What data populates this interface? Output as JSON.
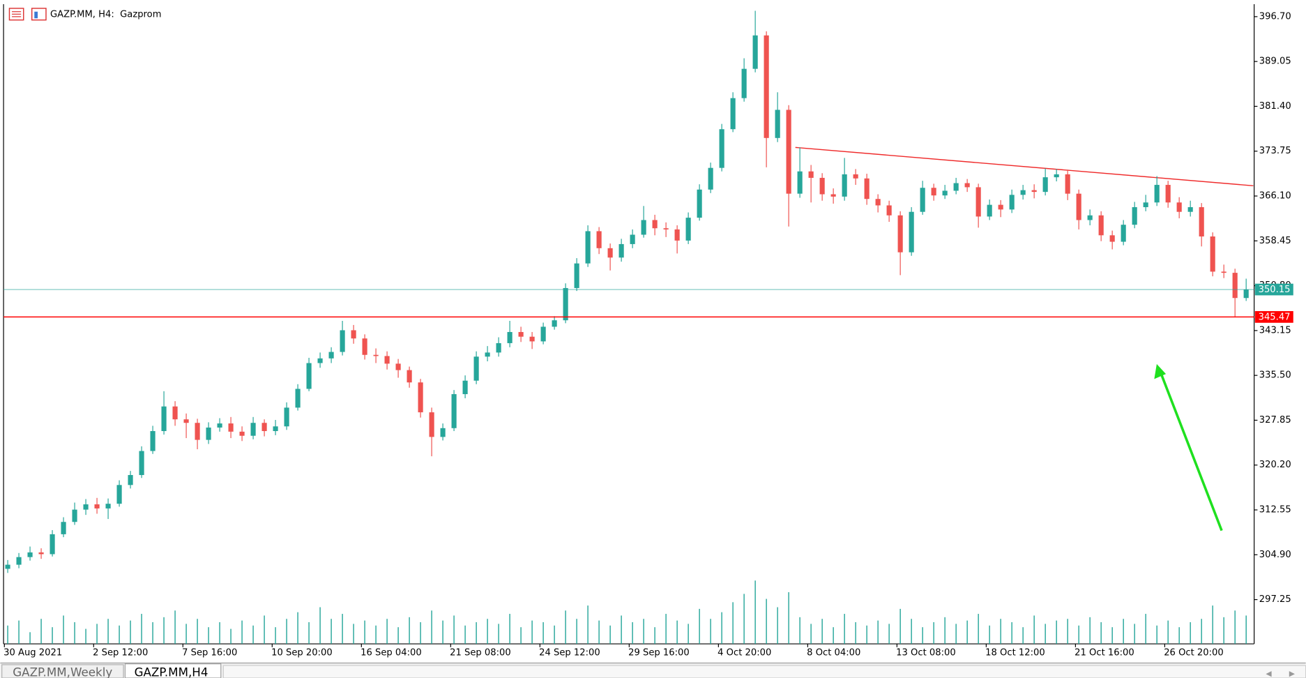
{
  "tabs": [
    "GAZP.MM,Weekly",
    "GAZP.MM,H4"
  ],
  "chart_data": {
    "type": "candlestick",
    "title": "GAZP.MM, H4:  Gazprom",
    "up_color": "#26a69a",
    "down_color": "#ef5350",
    "volume_color": "#26a69a",
    "ylim": [
      289.7,
      398.83
    ],
    "yticks": [
      {
        "value": 396.7,
        "label": "396.70"
      },
      {
        "value": 389.05,
        "label": "389.05"
      },
      {
        "value": 381.4,
        "label": "381.40"
      },
      {
        "value": 373.75,
        "label": "373.75"
      },
      {
        "value": 366.1,
        "label": "366.10"
      },
      {
        "value": 358.45,
        "label": "358.45"
      },
      {
        "value": 350.8,
        "label": "350.80"
      },
      {
        "value": 343.15,
        "label": "343.15"
      },
      {
        "value": 335.5,
        "label": "335.50"
      },
      {
        "value": 327.85,
        "label": "327.85"
      },
      {
        "value": 320.2,
        "label": "320.20"
      },
      {
        "value": 312.55,
        "label": "312.55"
      },
      {
        "value": 304.9,
        "label": "304.90"
      },
      {
        "value": 297.25,
        "label": "297.25"
      }
    ],
    "levels": [
      {
        "value": 350.15,
        "color": "#26a69a"
      },
      {
        "value": 345.47,
        "color": "#ff0000"
      }
    ],
    "categories": [
      "30 Aug 2021",
      null,
      null,
      null,
      null,
      null,
      null,
      null,
      "2 Sep 12:00",
      null,
      null,
      null,
      null,
      null,
      null,
      null,
      "7 Sep 16:00",
      null,
      null,
      null,
      null,
      null,
      null,
      null,
      "10 Sep 20:00",
      null,
      null,
      null,
      null,
      null,
      null,
      null,
      "16 Sep 04:00",
      null,
      null,
      null,
      null,
      null,
      null,
      null,
      "21 Sep 08:00",
      null,
      null,
      null,
      null,
      null,
      null,
      null,
      "24 Sep 12:00",
      null,
      null,
      null,
      null,
      null,
      null,
      null,
      "29 Sep 16:00",
      null,
      null,
      null,
      null,
      null,
      null,
      null,
      "4 Oct 20:00",
      null,
      null,
      null,
      null,
      null,
      null,
      null,
      "8 Oct 04:00",
      null,
      null,
      null,
      null,
      null,
      null,
      null,
      "13 Oct 08:00",
      null,
      null,
      null,
      null,
      null,
      null,
      null,
      "18 Oct 12:00",
      null,
      null,
      null,
      null,
      null,
      null,
      null,
      "21 Oct 16:00",
      null,
      null,
      null,
      null,
      null,
      null,
      null,
      "26 Oct 20:00",
      null,
      null,
      null,
      null,
      null,
      null,
      null
    ],
    "candles": [
      [
        302.5,
        304.0,
        301.8,
        303.2
      ],
      [
        303.2,
        305.2,
        302.6,
        304.5
      ],
      [
        304.5,
        306.3,
        303.9,
        305.3
      ],
      [
        305.3,
        306.0,
        304.2,
        305.0
      ],
      [
        305.0,
        309.1,
        304.6,
        308.4
      ],
      [
        308.4,
        311.3,
        307.9,
        310.5
      ],
      [
        310.5,
        313.8,
        310.0,
        312.6
      ],
      [
        312.6,
        314.4,
        311.7,
        313.5
      ],
      [
        313.5,
        314.6,
        311.9,
        312.8
      ],
      [
        312.8,
        314.5,
        311.0,
        313.6
      ],
      [
        313.6,
        317.6,
        313.1,
        316.8
      ],
      [
        316.8,
        319.2,
        316.2,
        318.5
      ],
      [
        318.5,
        323.4,
        318.0,
        322.6
      ],
      [
        322.6,
        326.9,
        322.1,
        326.0
      ],
      [
        326.0,
        332.8,
        325.4,
        330.2
      ],
      [
        330.2,
        331.1,
        326.9,
        328.0
      ],
      [
        328.0,
        329.0,
        324.8,
        327.4
      ],
      [
        327.4,
        328.1,
        322.9,
        324.5
      ],
      [
        324.5,
        327.5,
        323.8,
        326.6
      ],
      [
        326.6,
        328.2,
        325.9,
        327.3
      ],
      [
        327.3,
        328.4,
        324.8,
        325.9
      ],
      [
        325.9,
        326.8,
        324.3,
        325.2
      ],
      [
        325.2,
        328.4,
        324.6,
        327.4
      ],
      [
        327.4,
        328.0,
        325.1,
        326.0
      ],
      [
        326.0,
        327.9,
        325.3,
        326.8
      ],
      [
        326.8,
        330.9,
        326.2,
        330.0
      ],
      [
        330.0,
        334.0,
        329.5,
        333.2
      ],
      [
        333.2,
        338.5,
        332.8,
        337.6
      ],
      [
        337.6,
        339.4,
        336.8,
        338.4
      ],
      [
        338.4,
        340.3,
        337.6,
        339.5
      ],
      [
        339.5,
        344.8,
        338.9,
        343.2
      ],
      [
        343.2,
        344.1,
        340.9,
        341.8
      ],
      [
        341.8,
        342.5,
        338.2,
        339.0
      ],
      [
        339.0,
        340.1,
        337.6,
        338.8
      ],
      [
        338.8,
        339.6,
        336.5,
        337.5
      ],
      [
        337.5,
        338.3,
        335.1,
        336.4
      ],
      [
        336.4,
        337.0,
        333.4,
        334.3
      ],
      [
        334.3,
        334.9,
        328.3,
        329.2
      ],
      [
        329.2,
        330.0,
        321.7,
        325.0
      ],
      [
        325.0,
        327.3,
        324.4,
        326.5
      ],
      [
        326.5,
        333.0,
        326.0,
        332.3
      ],
      [
        332.3,
        335.5,
        331.6,
        334.6
      ],
      [
        334.6,
        339.6,
        334.0,
        338.7
      ],
      [
        338.7,
        340.5,
        337.9,
        339.4
      ],
      [
        339.4,
        342.0,
        338.7,
        341.0
      ],
      [
        341.0,
        344.8,
        340.3,
        342.9
      ],
      [
        342.9,
        343.8,
        341.2,
        342.1
      ],
      [
        342.1,
        342.9,
        340.0,
        341.3
      ],
      [
        341.3,
        344.5,
        340.8,
        343.8
      ],
      [
        343.8,
        345.6,
        343.3,
        344.9
      ],
      [
        344.9,
        351.2,
        344.4,
        350.4
      ],
      [
        350.4,
        355.5,
        349.9,
        354.6
      ],
      [
        354.6,
        361.1,
        354.0,
        360.1
      ],
      [
        360.1,
        360.8,
        356.2,
        357.2
      ],
      [
        357.2,
        358.0,
        353.4,
        355.6
      ],
      [
        355.6,
        358.8,
        354.9,
        357.9
      ],
      [
        357.9,
        360.4,
        357.2,
        359.5
      ],
      [
        359.5,
        364.4,
        359.0,
        362.0
      ],
      [
        362.0,
        362.9,
        359.4,
        360.6
      ],
      [
        360.6,
        361.6,
        359.1,
        360.4
      ],
      [
        360.4,
        361.1,
        356.3,
        358.5
      ],
      [
        358.5,
        363.3,
        357.9,
        362.4
      ],
      [
        362.4,
        368.1,
        361.9,
        367.2
      ],
      [
        367.2,
        371.8,
        366.6,
        370.9
      ],
      [
        370.9,
        378.4,
        370.3,
        377.5
      ],
      [
        377.5,
        383.8,
        377.0,
        382.8
      ],
      [
        382.8,
        389.6,
        382.2,
        387.8
      ],
      [
        387.8,
        397.7,
        387.2,
        393.5
      ],
      [
        393.5,
        394.2,
        371.0,
        376.0
      ],
      [
        376.0,
        383.8,
        375.3,
        380.8
      ],
      [
        380.8,
        381.6,
        360.9,
        366.5
      ],
      [
        366.5,
        374.4,
        365.8,
        370.3
      ],
      [
        370.3,
        371.4,
        365.0,
        369.2
      ],
      [
        369.2,
        370.0,
        365.3,
        366.4
      ],
      [
        366.4,
        367.4,
        364.8,
        366.0
      ],
      [
        366.0,
        372.6,
        365.3,
        369.8
      ],
      [
        369.8,
        370.7,
        368.0,
        369.1
      ],
      [
        369.1,
        369.9,
        364.6,
        365.6
      ],
      [
        365.6,
        366.4,
        363.3,
        364.5
      ],
      [
        364.5,
        365.3,
        361.7,
        362.8
      ],
      [
        362.8,
        363.5,
        352.6,
        356.5
      ],
      [
        356.5,
        364.2,
        355.9,
        363.4
      ],
      [
        363.4,
        368.7,
        362.9,
        367.5
      ],
      [
        367.5,
        368.2,
        365.3,
        366.2
      ],
      [
        366.2,
        368.0,
        365.6,
        367.0
      ],
      [
        367.0,
        369.2,
        366.4,
        368.3
      ],
      [
        368.3,
        369.0,
        366.8,
        367.6
      ],
      [
        367.6,
        368.2,
        360.7,
        362.6
      ],
      [
        362.6,
        365.5,
        362.0,
        364.6
      ],
      [
        364.6,
        365.4,
        362.5,
        363.8
      ],
      [
        363.8,
        367.2,
        363.2,
        366.3
      ],
      [
        366.3,
        368.0,
        365.5,
        367.1
      ],
      [
        367.1,
        368.1,
        365.7,
        366.8
      ],
      [
        366.8,
        370.8,
        366.2,
        369.3
      ],
      [
        369.3,
        370.7,
        368.6,
        369.8
      ],
      [
        369.8,
        370.6,
        365.4,
        366.5
      ],
      [
        366.5,
        367.2,
        360.4,
        362.0
      ],
      [
        362.0,
        363.8,
        361.1,
        362.8
      ],
      [
        362.8,
        363.5,
        358.4,
        359.4
      ],
      [
        359.4,
        360.2,
        357.0,
        358.3
      ],
      [
        358.3,
        362.0,
        357.7,
        361.2
      ],
      [
        361.2,
        365.1,
        360.6,
        364.2
      ],
      [
        364.2,
        366.3,
        363.5,
        365.0
      ],
      [
        365.0,
        369.5,
        364.4,
        368.0
      ],
      [
        368.0,
        368.7,
        364.1,
        365.0
      ],
      [
        365.0,
        365.9,
        362.3,
        363.4
      ],
      [
        363.4,
        365.3,
        362.6,
        364.2
      ],
      [
        364.2,
        364.9,
        357.5,
        359.2
      ],
      [
        359.2,
        359.9,
        352.4,
        353.2
      ],
      [
        353.2,
        354.4,
        352.1,
        353.0
      ],
      [
        353.0,
        353.7,
        345.5,
        348.7
      ],
      [
        348.7,
        352.0,
        348.2,
        350.15
      ]
    ],
    "volume": [
      22,
      28,
      14,
      30,
      20,
      34,
      26,
      18,
      24,
      30,
      22,
      28,
      36,
      26,
      32,
      40,
      24,
      30,
      20,
      26,
      18,
      28,
      22,
      34,
      20,
      30,
      38,
      26,
      44,
      30,
      36,
      24,
      28,
      22,
      30,
      20,
      32,
      26,
      40,
      28,
      34,
      22,
      26,
      30,
      24,
      36,
      20,
      28,
      26,
      22,
      40,
      30,
      46,
      28,
      22,
      34,
      26,
      30,
      20,
      36,
      28,
      24,
      42,
      30,
      38,
      50,
      60,
      76,
      54,
      44,
      62,
      32,
      24,
      30,
      20,
      36,
      26,
      22,
      28,
      24,
      42,
      30,
      20,
      26,
      32,
      24,
      28,
      36,
      22,
      30,
      26,
      20,
      34,
      24,
      28,
      30,
      22,
      32,
      26,
      20,
      30,
      24,
      36,
      22,
      28,
      20,
      26,
      30,
      46,
      32,
      40,
      34
    ]
  }
}
